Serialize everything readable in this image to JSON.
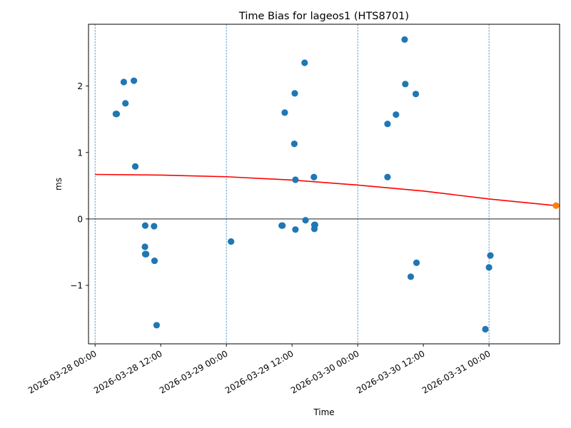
{
  "chart_data": {
    "type": "scatter",
    "title": "Time Bias for lageos1 (HTS8701)",
    "xlabel": "Time",
    "ylabel": "ms",
    "x_axis_type": "datetime",
    "xlim": [
      "2026-03-27 22:48",
      "2026-03-31 12:54"
    ],
    "ylim": [
      -1.88,
      2.93
    ],
    "x_ticks": [
      "2026-03-28 00:00",
      "2026-03-28 12:00",
      "2026-03-29 00:00",
      "2026-03-29 12:00",
      "2026-03-30 00:00",
      "2026-03-30 12:00",
      "2026-03-31 00:00"
    ],
    "y_ticks": [
      -1,
      0,
      1,
      2
    ],
    "y_tick_labels": [
      "−1",
      "0",
      "1",
      "2"
    ],
    "vertical_lines": [
      "2026-03-28 00:00",
      "2026-03-29 00:00",
      "2026-03-30 00:00",
      "2026-03-31 00:00"
    ],
    "vertical_line_color": "#1f77b4",
    "horizontal_line": 0,
    "series": [
      {
        "color": "#1f77b4",
        "points": [
          {
            "x": "2026-03-28 03:48",
            "y": 1.58
          },
          {
            "x": "2026-03-28 03:57",
            "y": 1.58
          },
          {
            "x": "2026-03-28 05:15",
            "y": 2.06
          },
          {
            "x": "2026-03-28 05:33",
            "y": 1.74
          },
          {
            "x": "2026-03-28 07:06",
            "y": 2.08
          },
          {
            "x": "2026-03-28 07:21",
            "y": 0.79
          },
          {
            "x": "2026-03-28 09:07",
            "y": -0.42
          },
          {
            "x": "2026-03-28 09:10",
            "y": -0.1
          },
          {
            "x": "2026-03-28 09:10",
            "y": -0.53
          },
          {
            "x": "2026-03-28 09:20",
            "y": -0.53
          },
          {
            "x": "2026-03-28 10:47",
            "y": -0.11
          },
          {
            "x": "2026-03-28 10:52",
            "y": -0.63
          },
          {
            "x": "2026-03-28 11:15",
            "y": -1.6
          },
          {
            "x": "2026-03-29 00:51",
            "y": -0.34
          },
          {
            "x": "2026-03-29 10:07",
            "y": -0.1
          },
          {
            "x": "2026-03-29 10:15",
            "y": -0.1
          },
          {
            "x": "2026-03-29 10:40",
            "y": 1.6
          },
          {
            "x": "2026-03-29 12:25",
            "y": 1.13
          },
          {
            "x": "2026-03-29 12:30",
            "y": 1.89
          },
          {
            "x": "2026-03-29 12:37",
            "y": 0.59
          },
          {
            "x": "2026-03-29 12:37",
            "y": -0.16
          },
          {
            "x": "2026-03-29 14:18",
            "y": 2.35
          },
          {
            "x": "2026-03-29 14:28",
            "y": -0.02
          },
          {
            "x": "2026-03-29 16:00",
            "y": 0.63
          },
          {
            "x": "2026-03-29 16:05",
            "y": -0.09
          },
          {
            "x": "2026-03-29 16:05",
            "y": -0.15
          },
          {
            "x": "2026-03-29 16:12",
            "y": -0.09
          },
          {
            "x": "2026-03-30 05:27",
            "y": 1.43
          },
          {
            "x": "2026-03-30 05:27",
            "y": 0.63
          },
          {
            "x": "2026-03-30 07:00",
            "y": 1.57
          },
          {
            "x": "2026-03-30 08:35",
            "y": 2.7
          },
          {
            "x": "2026-03-30 08:42",
            "y": 2.03
          },
          {
            "x": "2026-03-30 09:42",
            "y": -0.87
          },
          {
            "x": "2026-03-30 10:37",
            "y": 1.88
          },
          {
            "x": "2026-03-30 10:45",
            "y": -0.66
          },
          {
            "x": "2026-03-30 23:20",
            "y": -1.66
          },
          {
            "x": "2026-03-31 00:00",
            "y": -0.73
          },
          {
            "x": "2026-03-31 00:15",
            "y": -0.55
          }
        ]
      },
      {
        "color": "#ff7f0e",
        "points": [
          {
            "x": "2026-03-31 12:15",
            "y": 0.2
          }
        ]
      }
    ],
    "fit_line": {
      "color": "#ff0000",
      "points": [
        {
          "x": "2026-03-28 00:00",
          "y": 0.67
        },
        {
          "x": "2026-03-28 12:00",
          "y": 0.66
        },
        {
          "x": "2026-03-29 00:00",
          "y": 0.635
        },
        {
          "x": "2026-03-29 12:00",
          "y": 0.585
        },
        {
          "x": "2026-03-30 00:00",
          "y": 0.51
        },
        {
          "x": "2026-03-30 12:00",
          "y": 0.42
        },
        {
          "x": "2026-03-31 00:00",
          "y": 0.3
        },
        {
          "x": "2026-03-31 12:15",
          "y": 0.2
        }
      ]
    },
    "grid": false,
    "legend": "none"
  }
}
